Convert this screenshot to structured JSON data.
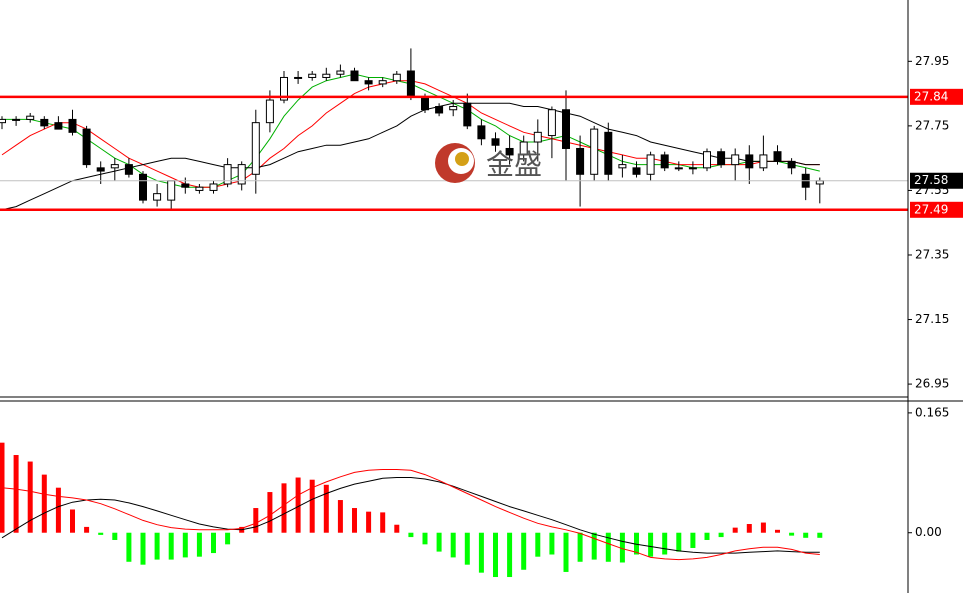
{
  "chart_data": [
    {
      "type": "candlestick",
      "open": [
        27.76,
        27.77,
        27.77,
        27.77,
        27.76,
        27.77,
        27.74,
        27.62,
        27.62,
        27.63,
        27.6,
        27.52,
        27.52,
        27.57,
        27.55,
        27.55,
        27.57,
        27.57,
        27.6,
        27.76,
        27.83,
        27.9,
        27.9,
        27.9,
        27.91,
        27.92,
        27.89,
        27.88,
        27.89,
        27.92,
        27.84,
        27.81,
        27.8,
        27.82,
        27.75,
        27.71,
        27.68,
        27.66,
        27.7,
        27.72,
        27.8,
        27.68,
        27.6,
        27.73,
        27.62,
        27.62,
        27.6,
        27.66,
        27.62,
        27.62,
        27.62,
        27.67,
        27.63,
        27.66,
        27.62,
        27.67,
        27.64,
        27.6,
        27.57
      ],
      "high": [
        27.78,
        27.78,
        27.79,
        27.78,
        27.78,
        27.8,
        27.75,
        27.64,
        27.65,
        27.65,
        27.61,
        27.57,
        27.58,
        27.59,
        27.57,
        27.58,
        27.65,
        27.64,
        27.8,
        27.86,
        27.92,
        27.92,
        27.92,
        27.93,
        27.94,
        27.93,
        27.9,
        27.9,
        27.92,
        27.99,
        27.85,
        27.82,
        27.83,
        27.85,
        27.77,
        27.73,
        27.72,
        27.72,
        27.77,
        27.81,
        27.86,
        27.72,
        27.75,
        27.76,
        27.66,
        27.64,
        27.67,
        27.67,
        27.64,
        27.64,
        27.68,
        27.68,
        27.68,
        27.69,
        27.72,
        27.69,
        27.65,
        27.62,
        27.59
      ],
      "low": [
        27.74,
        27.75,
        27.76,
        27.74,
        27.74,
        27.72,
        27.62,
        27.57,
        27.58,
        27.59,
        27.51,
        27.5,
        27.49,
        27.54,
        27.54,
        27.54,
        27.56,
        27.55,
        27.54,
        27.73,
        27.82,
        27.88,
        27.89,
        27.89,
        27.9,
        27.89,
        27.86,
        27.87,
        27.88,
        27.83,
        27.79,
        27.78,
        27.78,
        27.74,
        27.69,
        27.67,
        27.63,
        27.64,
        27.64,
        27.65,
        27.58,
        27.5,
        27.58,
        27.58,
        27.59,
        27.59,
        27.58,
        27.61,
        27.61,
        27.6,
        27.61,
        27.62,
        27.58,
        27.57,
        27.61,
        27.63,
        27.6,
        27.52,
        27.51
      ],
      "close": [
        27.77,
        27.77,
        27.78,
        27.75,
        27.74,
        27.73,
        27.63,
        27.61,
        27.63,
        27.6,
        27.52,
        27.54,
        27.58,
        27.56,
        27.56,
        27.57,
        27.63,
        27.63,
        27.76,
        27.83,
        27.9,
        27.9,
        27.91,
        27.91,
        27.92,
        27.89,
        27.88,
        27.89,
        27.91,
        27.84,
        27.8,
        27.79,
        27.81,
        27.75,
        27.71,
        27.69,
        27.66,
        27.7,
        27.73,
        27.8,
        27.68,
        27.6,
        27.74,
        27.6,
        27.63,
        27.6,
        27.66,
        27.62,
        27.62,
        27.62,
        27.67,
        27.63,
        27.66,
        27.62,
        27.66,
        27.64,
        27.62,
        27.56,
        27.58
      ],
      "series": [
        {
          "color": "#00b000",
          "values": [
            27.77,
            27.77,
            27.77,
            27.76,
            27.75,
            27.74,
            27.71,
            27.68,
            27.65,
            27.63,
            27.6,
            27.58,
            27.57,
            27.56,
            27.56,
            27.56,
            27.58,
            27.6,
            27.65,
            27.71,
            27.78,
            27.83,
            27.87,
            27.89,
            27.9,
            27.91,
            27.9,
            27.9,
            27.89,
            27.88,
            27.86,
            27.84,
            27.82,
            27.8,
            27.77,
            27.75,
            27.72,
            27.7,
            27.7,
            27.71,
            27.72,
            27.7,
            27.68,
            27.66,
            27.64,
            27.63,
            27.63,
            27.63,
            27.63,
            27.62,
            27.62,
            27.63,
            27.63,
            27.64,
            27.64,
            27.64,
            27.63,
            27.62,
            27.61
          ]
        },
        {
          "color": "#ff0000",
          "values": [
            27.66,
            27.69,
            27.72,
            27.74,
            27.76,
            27.76,
            27.74,
            27.71,
            27.68,
            27.65,
            27.63,
            27.61,
            27.59,
            27.57,
            27.56,
            27.56,
            27.57,
            27.58,
            27.61,
            27.65,
            27.68,
            27.72,
            27.75,
            27.79,
            27.82,
            27.85,
            27.87,
            27.88,
            27.89,
            27.89,
            27.88,
            27.86,
            27.84,
            27.82,
            27.79,
            27.77,
            27.75,
            27.73,
            27.72,
            27.71,
            27.7,
            27.69,
            27.68,
            27.67,
            27.66,
            27.65,
            27.65,
            27.64,
            27.63,
            27.63,
            27.63,
            27.63,
            27.63,
            27.63,
            27.64,
            27.64,
            27.64,
            27.63,
            27.63
          ]
        },
        {
          "color": "#000000",
          "values": [
            27.49,
            27.5,
            27.52,
            27.54,
            27.56,
            27.58,
            27.59,
            27.6,
            27.61,
            27.62,
            27.63,
            27.64,
            27.65,
            27.65,
            27.64,
            27.63,
            27.62,
            27.62,
            27.62,
            27.63,
            27.65,
            27.67,
            27.68,
            27.69,
            27.69,
            27.7,
            27.71,
            27.73,
            27.75,
            27.78,
            27.8,
            27.81,
            27.82,
            27.82,
            27.82,
            27.82,
            27.82,
            27.81,
            27.81,
            27.8,
            27.79,
            27.78,
            27.76,
            27.74,
            27.73,
            27.72,
            27.7,
            27.69,
            27.68,
            27.67,
            27.66,
            27.65,
            27.65,
            27.64,
            27.64,
            27.64,
            27.64,
            27.63,
            27.63
          ]
        }
      ],
      "ylim": [
        26.91,
        28.14
      ],
      "yticks": [
        26.95,
        27.15,
        27.35,
        27.55,
        27.75,
        27.95
      ],
      "levels": [
        {
          "value": 27.58,
          "color": "#c0c0c0",
          "box": "#000000"
        },
        {
          "value": 27.84,
          "color": "#ff0000",
          "box": "#ff0000"
        },
        {
          "value": 27.49,
          "color": "#ff0000",
          "box": "#ff0000"
        }
      ],
      "watermark": "金盛"
    },
    {
      "type": "macd",
      "values": [
        0.124,
        0.107,
        0.098,
        0.08,
        0.062,
        0.032,
        0.008,
        -0.003,
        -0.01,
        -0.04,
        -0.044,
        -0.037,
        -0.037,
        -0.034,
        -0.033,
        -0.028,
        -0.016,
        0.008,
        0.034,
        0.056,
        0.068,
        0.076,
        0.073,
        0.066,
        0.045,
        0.034,
        0.029,
        0.028,
        0.011,
        -0.006,
        -0.016,
        -0.026,
        -0.034,
        -0.044,
        -0.055,
        -0.061,
        -0.061,
        -0.051,
        -0.033,
        -0.03,
        -0.054,
        -0.04,
        -0.037,
        -0.04,
        -0.041,
        -0.03,
        -0.033,
        -0.03,
        -0.026,
        -0.021,
        -0.01,
        -0.006,
        0.007,
        0.012,
        0.014,
        0.004,
        -0.004,
        -0.007,
        -0.007
      ],
      "positive_color": "#ff0000",
      "negative_color": "#00ff00",
      "series": [
        {
          "color": "#000000",
          "values": [
            -0.007,
            0.005,
            0.017,
            0.027,
            0.036,
            0.042,
            0.045,
            0.046,
            0.045,
            0.041,
            0.036,
            0.03,
            0.024,
            0.018,
            0.012,
            0.008,
            0.005,
            0.004,
            0.008,
            0.016,
            0.026,
            0.036,
            0.046,
            0.054,
            0.061,
            0.067,
            0.071,
            0.075,
            0.076,
            0.076,
            0.074,
            0.07,
            0.064,
            0.057,
            0.05,
            0.043,
            0.036,
            0.03,
            0.024,
            0.018,
            0.011,
            0.004,
            -0.002,
            -0.007,
            -0.012,
            -0.016,
            -0.019,
            -0.022,
            -0.025,
            -0.027,
            -0.028,
            -0.028,
            -0.028,
            -0.027,
            -0.026,
            -0.025,
            -0.026,
            -0.027,
            -0.027
          ]
        },
        {
          "color": "#ff0000",
          "values": [
            0.062,
            0.06,
            0.057,
            0.053,
            0.05,
            0.048,
            0.045,
            0.04,
            0.033,
            0.025,
            0.017,
            0.011,
            0.007,
            0.005,
            0.004,
            0.004,
            0.004,
            0.006,
            0.013,
            0.024,
            0.038,
            0.052,
            0.062,
            0.07,
            0.077,
            0.083,
            0.086,
            0.087,
            0.087,
            0.086,
            0.08,
            0.072,
            0.063,
            0.054,
            0.045,
            0.036,
            0.028,
            0.02,
            0.013,
            0.008,
            0.004,
            -0.001,
            -0.008,
            -0.015,
            -0.022,
            -0.027,
            -0.034,
            -0.036,
            -0.037,
            -0.036,
            -0.034,
            -0.03,
            -0.025,
            -0.022,
            -0.02,
            -0.02,
            -0.023,
            -0.028,
            -0.03
          ]
        }
      ],
      "ylim": [
        -0.083,
        0.18
      ],
      "yticks": [
        {
          "value": 0,
          "label": "0.00"
        },
        0.165
      ]
    }
  ]
}
